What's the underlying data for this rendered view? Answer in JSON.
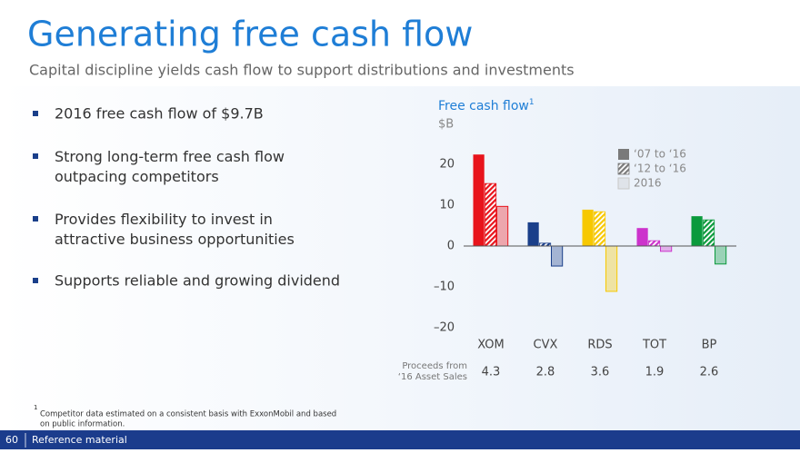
{
  "header": {
    "title": "Generating free cash flow",
    "subtitle": "Capital discipline yields cash flow to support distributions and investments"
  },
  "bullets": [
    "2016 free cash flow of $9.7B",
    "Strong long-term free cash flow outpacing competitors",
    "Provides flexibility to invest in attractive business opportunities",
    "Supports reliable and growing dividend"
  ],
  "chart_data": {
    "type": "bar",
    "title": "Free cash flow",
    "title_note": "1",
    "y_label": "$B",
    "categories": [
      "XOM",
      "CVX",
      "RDS",
      "TOT",
      "BP"
    ],
    "category_colors": [
      "#e8141c",
      "#1a3f8a",
      "#f7c800",
      "#cc33cc",
      "#0a9a3c"
    ],
    "series": [
      {
        "name": "‘07 to ‘16",
        "color": "#7a7a7a",
        "style": "solid",
        "values": [
          22.4,
          5.8,
          8.9,
          4.4,
          7.3
        ]
      },
      {
        "name": "‘12 to ‘16",
        "color": "#7a7a7a",
        "style": "hatch",
        "values": [
          15.3,
          0.7,
          8.4,
          1.3,
          6.4
        ]
      },
      {
        "name": "2016",
        "color": "#c8c8c8",
        "style": "light",
        "values": [
          9.7,
          -4.9,
          -11.1,
          -1.3,
          -4.4
        ]
      }
    ],
    "ylim": [
      -20,
      25
    ],
    "yticks": [
      20,
      10,
      0,
      {
        "value": -10,
        "label": "–10"
      },
      {
        "value": -20,
        "label": "–20"
      }
    ],
    "row_label": [
      "Proceeds from",
      "‘16 Asset Sales"
    ],
    "row_values": [
      4.3,
      2.8,
      3.6,
      1.9,
      2.6
    ]
  },
  "footnote": {
    "marker": "1",
    "lines": [
      "Competitor data estimated on a consistent basis with ExxonMobil and based",
      "on public information."
    ]
  },
  "footer": {
    "page": "60",
    "label": "Reference material"
  }
}
